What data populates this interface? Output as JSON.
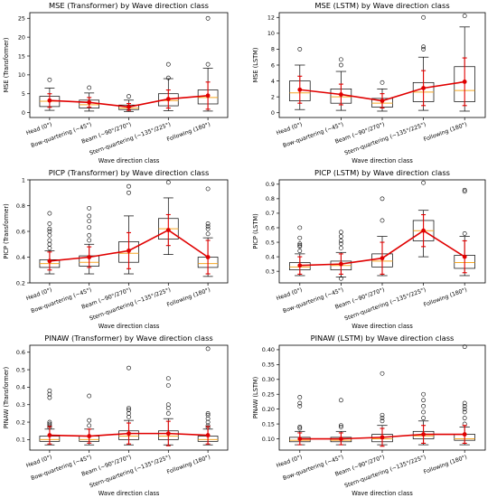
{
  "chart_data": [
    {
      "type": "box",
      "title": "MSE (Transformer) by Wave direction class",
      "xlabel": "Wave direction class",
      "ylabel": "MSE (Transformer)",
      "ylim": [
        -1.3,
        26.5
      ],
      "yticks": [
        0,
        5,
        10,
        15,
        20,
        25
      ],
      "categories": [
        "Head (0°)",
        "Bow-quartering (~45°)",
        "Beam (~90°/270°)",
        "Stern-quartering (~135°/225°)",
        "Following (180°)"
      ],
      "boxes": [
        {
          "wlo": 0.6,
          "q1": 1.6,
          "med": 3.0,
          "q3": 4.3,
          "whi": 6.5,
          "fliers": [
            8.7
          ]
        },
        {
          "wlo": 0.4,
          "q1": 1.2,
          "med": 2.1,
          "q3": 3.3,
          "whi": 5.2,
          "fliers": [
            6.6
          ]
        },
        {
          "wlo": 0.3,
          "q1": 0.8,
          "med": 1.2,
          "q3": 2.0,
          "whi": 3.3,
          "fliers": [
            4.3
          ]
        },
        {
          "wlo": 0.5,
          "q1": 1.8,
          "med": 3.2,
          "q3": 5.0,
          "whi": 9.0,
          "fliers": [
            9.2,
            12.8
          ]
        },
        {
          "wlo": 0.4,
          "q1": 2.3,
          "med": 4.0,
          "q3": 6.0,
          "whi": 11.8,
          "fliers": [
            12.8,
            25.0
          ]
        }
      ],
      "means": [
        3.2,
        2.7,
        1.5,
        3.6,
        4.5
      ],
      "errors": [
        1.8,
        1.3,
        0.9,
        2.4,
        3.6
      ]
    },
    {
      "type": "box",
      "title": "MSE (LSTM) by Wave direction class",
      "xlabel": "Wave direction class",
      "ylabel": "MSE (LSTM)",
      "ylim": [
        -0.6,
        12.6
      ],
      "yticks": [
        0,
        2,
        4,
        6,
        8,
        10,
        12
      ],
      "categories": [
        "Head (0°)",
        "Bow-quartering (~45°)",
        "Beam (~90°/270°)",
        "Stern-quartering (~135°/225°)",
        "Following (180°)"
      ],
      "boxes": [
        {
          "wlo": 0.4,
          "q1": 1.5,
          "med": 2.5,
          "q3": 4.0,
          "whi": 6.0,
          "fliers": [
            8.0
          ]
        },
        {
          "wlo": 0.3,
          "q1": 1.2,
          "med": 2.0,
          "q3": 3.0,
          "whi": 5.2,
          "fliers": [
            6.0,
            6.7
          ]
        },
        {
          "wlo": 0.2,
          "q1": 0.7,
          "med": 1.2,
          "q3": 1.8,
          "whi": 3.0,
          "fliers": [
            3.8
          ]
        },
        {
          "wlo": 0.3,
          "q1": 1.4,
          "med": 2.6,
          "q3": 3.8,
          "whi": 7.0,
          "fliers": [
            8.0,
            8.3,
            12.0
          ]
        },
        {
          "wlo": 0.2,
          "q1": 1.4,
          "med": 2.8,
          "q3": 5.8,
          "whi": 10.8,
          "fliers": [
            12.2
          ]
        }
      ],
      "means": [
        2.9,
        2.3,
        1.5,
        3.1,
        3.9
      ],
      "errors": [
        1.7,
        1.3,
        0.9,
        2.2,
        3.0
      ]
    },
    {
      "type": "box",
      "title": "PICP (Transformer) by Wave direction class",
      "xlabel": "Wave direction class",
      "ylabel": "PICP (Transformer)",
      "ylim": [
        0.2,
        1.0
      ],
      "yticks": [
        0.2,
        0.4,
        0.6,
        0.8,
        1.0
      ],
      "categories": [
        "Head (0°)",
        "Bow-quartering (~45°)",
        "Beam (~90°/270°)",
        "Stern-quartering (~135°/225°)",
        "Following (180°)"
      ],
      "boxes": [
        {
          "wlo": 0.27,
          "q1": 0.32,
          "med": 0.35,
          "q3": 0.38,
          "whi": 0.45,
          "fliers": [
            0.47,
            0.5,
            0.53,
            0.57,
            0.6,
            0.62,
            0.66,
            0.74
          ]
        },
        {
          "wlo": 0.27,
          "q1": 0.33,
          "med": 0.36,
          "q3": 0.41,
          "whi": 0.5,
          "fliers": [
            0.53,
            0.57,
            0.63,
            0.68,
            0.72,
            0.78
          ]
        },
        {
          "wlo": 0.27,
          "q1": 0.36,
          "med": 0.43,
          "q3": 0.52,
          "whi": 0.72,
          "fliers": [
            0.9,
            0.95
          ]
        },
        {
          "wlo": 0.42,
          "q1": 0.54,
          "med": 0.62,
          "q3": 0.7,
          "whi": 0.86,
          "fliers": [
            0.98
          ]
        },
        {
          "wlo": 0.25,
          "q1": 0.32,
          "med": 0.35,
          "q3": 0.4,
          "whi": 0.55,
          "fliers": [
            0.58,
            0.62,
            0.64,
            0.66,
            0.93
          ]
        }
      ],
      "means": [
        0.37,
        0.4,
        0.45,
        0.61,
        0.4
      ],
      "errors": [
        0.07,
        0.08,
        0.14,
        0.12,
        0.13
      ]
    },
    {
      "type": "box",
      "title": "PICP (LSTM) by Wave direction class",
      "xlabel": "Wave direction class",
      "ylabel": "PICP (LSTM)",
      "ylim": [
        0.22,
        0.93
      ],
      "yticks": [
        0.3,
        0.4,
        0.5,
        0.6,
        0.7,
        0.8,
        0.9
      ],
      "categories": [
        "Head (0°)",
        "Bow-quartering (~45°)",
        "Beam (~90°/270°)",
        "Stern-quartering (~135°/225°)",
        "Following (180°)"
      ],
      "boxes": [
        {
          "wlo": 0.27,
          "q1": 0.31,
          "med": 0.33,
          "q3": 0.36,
          "whi": 0.42,
          "fliers": [
            0.44,
            0.47,
            0.48,
            0.49,
            0.53,
            0.6
          ]
        },
        {
          "wlo": 0.26,
          "q1": 0.31,
          "med": 0.34,
          "q3": 0.37,
          "whi": 0.43,
          "fliers": [
            0.25,
            0.46,
            0.49,
            0.51,
            0.54,
            0.57
          ]
        },
        {
          "wlo": 0.27,
          "q1": 0.33,
          "med": 0.37,
          "q3": 0.42,
          "whi": 0.54,
          "fliers": [
            0.65,
            0.8
          ]
        },
        {
          "wlo": 0.4,
          "q1": 0.51,
          "med": 0.58,
          "q3": 0.65,
          "whi": 0.72,
          "fliers": [
            0.91
          ]
        },
        {
          "wlo": 0.27,
          "q1": 0.32,
          "med": 0.36,
          "q3": 0.41,
          "whi": 0.54,
          "fliers": [
            0.56,
            0.85,
            0.86
          ]
        }
      ],
      "means": [
        0.34,
        0.35,
        0.39,
        0.58,
        0.4
      ],
      "errors": [
        0.06,
        0.07,
        0.11,
        0.11,
        0.11
      ]
    },
    {
      "type": "box",
      "title": "PINAW (Transformer) by Wave direction class",
      "xlabel": "Wave direction class",
      "ylabel": "PINAW (Transformer)",
      "ylim": [
        0.04,
        0.64
      ],
      "yticks": [
        0.1,
        0.2,
        0.3,
        0.4,
        0.5,
        0.6
      ],
      "categories": [
        "Head (0°)",
        "Bow-quartering (~45°)",
        "Beam (~90°/270°)",
        "Stern-quartering (~135°/225°)",
        "Following (180°)"
      ],
      "boxes": [
        {
          "wlo": 0.07,
          "q1": 0.09,
          "med": 0.1,
          "q3": 0.12,
          "whi": 0.16,
          "fliers": [
            0.17,
            0.18,
            0.19,
            0.2,
            0.34,
            0.36,
            0.38
          ]
        },
        {
          "wlo": 0.07,
          "q1": 0.09,
          "med": 0.1,
          "q3": 0.12,
          "whi": 0.16,
          "fliers": [
            0.18,
            0.21,
            0.35
          ]
        },
        {
          "wlo": 0.07,
          "q1": 0.1,
          "med": 0.12,
          "q3": 0.15,
          "whi": 0.21,
          "fliers": [
            0.23,
            0.25,
            0.27,
            0.28,
            0.51
          ]
        },
        {
          "wlo": 0.07,
          "q1": 0.1,
          "med": 0.12,
          "q3": 0.15,
          "whi": 0.22,
          "fliers": [
            0.25,
            0.28,
            0.3,
            0.41,
            0.45
          ]
        },
        {
          "wlo": 0.07,
          "q1": 0.09,
          "med": 0.1,
          "q3": 0.12,
          "whi": 0.16,
          "fliers": [
            0.17,
            0.18,
            0.2,
            0.22,
            0.24,
            0.25,
            0.62
          ]
        }
      ],
      "means": [
        0.125,
        0.12,
        0.135,
        0.135,
        0.125
      ],
      "errors": [
        0.05,
        0.04,
        0.06,
        0.07,
        0.05
      ]
    },
    {
      "type": "box",
      "title": "PINAW (LSTM) by Wave direction class",
      "xlabel": "Wave direction class",
      "ylabel": "PINAW (LSTM)",
      "ylim": [
        0.062,
        0.415
      ],
      "yticks": [
        0.1,
        0.15,
        0.2,
        0.25,
        0.3,
        0.35,
        0.4
      ],
      "ytick_labels": [
        "0.10",
        "0.15",
        "0.20",
        "0.25",
        "0.30",
        "0.35",
        "0.40"
      ],
      "categories": [
        "Head (0°)",
        "Bow-quartering (~45°)",
        "Beam (~90°/270°)",
        "Stern-quartering (~135°/225°)",
        "Following (180°)"
      ],
      "boxes": [
        {
          "wlo": 0.08,
          "q1": 0.09,
          "med": 0.095,
          "q3": 0.105,
          "whi": 0.125,
          "fliers": [
            0.135,
            0.14,
            0.21,
            0.22,
            0.24
          ]
        },
        {
          "wlo": 0.08,
          "q1": 0.09,
          "med": 0.095,
          "q3": 0.105,
          "whi": 0.125,
          "fliers": [
            0.14,
            0.145,
            0.23
          ]
        },
        {
          "wlo": 0.08,
          "q1": 0.09,
          "med": 0.1,
          "q3": 0.115,
          "whi": 0.145,
          "fliers": [
            0.16,
            0.17,
            0.18,
            0.32
          ]
        },
        {
          "wlo": 0.08,
          "q1": 0.1,
          "med": 0.11,
          "q3": 0.125,
          "whi": 0.16,
          "fliers": [
            0.17,
            0.19,
            0.21,
            0.23,
            0.25
          ]
        },
        {
          "wlo": 0.08,
          "q1": 0.095,
          "med": 0.1,
          "q3": 0.115,
          "whi": 0.14,
          "fliers": [
            0.15,
            0.17,
            0.19,
            0.2,
            0.21,
            0.22,
            0.41
          ]
        }
      ],
      "means": [
        0.1,
        0.1,
        0.105,
        0.115,
        0.115
      ],
      "errors": [
        0.02,
        0.02,
        0.03,
        0.03,
        0.03
      ]
    }
  ]
}
